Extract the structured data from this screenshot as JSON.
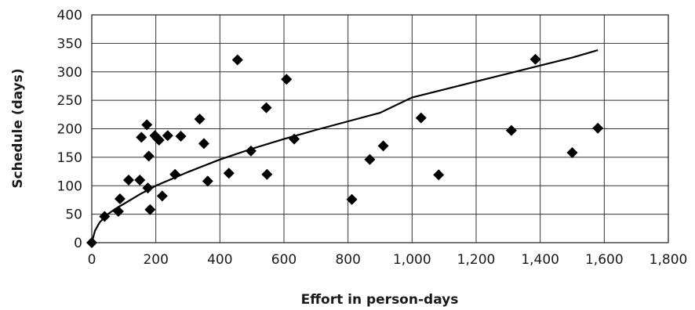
{
  "chart_data": {
    "type": "scatter",
    "title": "",
    "xlabel": "Effort in person-days",
    "ylabel": "Schedule (days)",
    "xlim": [
      0,
      1800
    ],
    "ylim": [
      0,
      400
    ],
    "grid": true,
    "x_ticks": [
      0,
      200,
      400,
      600,
      800,
      1000,
      1200,
      1400,
      1600,
      1800
    ],
    "x_tick_labels": [
      "0",
      "200",
      "400",
      "600",
      "800",
      "1,000",
      "1,200",
      "1,400",
      "1,600",
      "1,800"
    ],
    "y_ticks": [
      0,
      50,
      100,
      150,
      200,
      250,
      300,
      350,
      400
    ],
    "y_tick_labels": [
      "0",
      "50",
      "100",
      "150",
      "200",
      "250",
      "300",
      "350",
      "400"
    ],
    "series": [
      {
        "marker": "diamond",
        "color": "#000000",
        "points": [
          [
            0,
            0
          ],
          [
            40,
            46
          ],
          [
            83,
            55
          ],
          [
            88,
            77
          ],
          [
            115,
            110
          ],
          [
            150,
            110
          ],
          [
            155,
            185
          ],
          [
            172,
            207
          ],
          [
            175,
            96
          ],
          [
            178,
            152
          ],
          [
            182,
            58
          ],
          [
            197,
            188
          ],
          [
            205,
            183
          ],
          [
            210,
            180
          ],
          [
            220,
            82
          ],
          [
            237,
            188
          ],
          [
            260,
            120
          ],
          [
            278,
            187
          ],
          [
            337,
            217
          ],
          [
            350,
            174
          ],
          [
            362,
            108
          ],
          [
            428,
            122
          ],
          [
            455,
            321
          ],
          [
            497,
            161
          ],
          [
            545,
            237
          ],
          [
            547,
            120
          ],
          [
            608,
            287
          ],
          [
            632,
            182
          ],
          [
            812,
            76
          ],
          [
            868,
            146
          ],
          [
            910,
            170
          ],
          [
            1028,
            219
          ],
          [
            1083,
            119
          ],
          [
            1310,
            197
          ],
          [
            1385,
            322
          ],
          [
            1500,
            158
          ],
          [
            1580,
            201
          ]
        ]
      },
      {
        "type": "line",
        "color": "#000000",
        "points": [
          [
            0,
            0
          ],
          [
            10,
            21
          ],
          [
            25,
            36
          ],
          [
            50,
            50
          ],
          [
            75,
            60
          ],
          [
            100,
            68
          ],
          [
            150,
            85
          ],
          [
            200,
            100
          ],
          [
            250,
            112
          ],
          [
            300,
            124
          ],
          [
            400,
            146
          ],
          [
            500,
            165
          ],
          [
            600,
            182
          ],
          [
            700,
            198
          ],
          [
            800,
            213
          ],
          [
            900,
            228
          ],
          [
            1000,
            255
          ],
          [
            1100,
            269
          ],
          [
            1200,
            283
          ],
          [
            1300,
            297
          ],
          [
            1400,
            311
          ],
          [
            1500,
            325
          ],
          [
            1580,
            338
          ]
        ]
      }
    ]
  }
}
